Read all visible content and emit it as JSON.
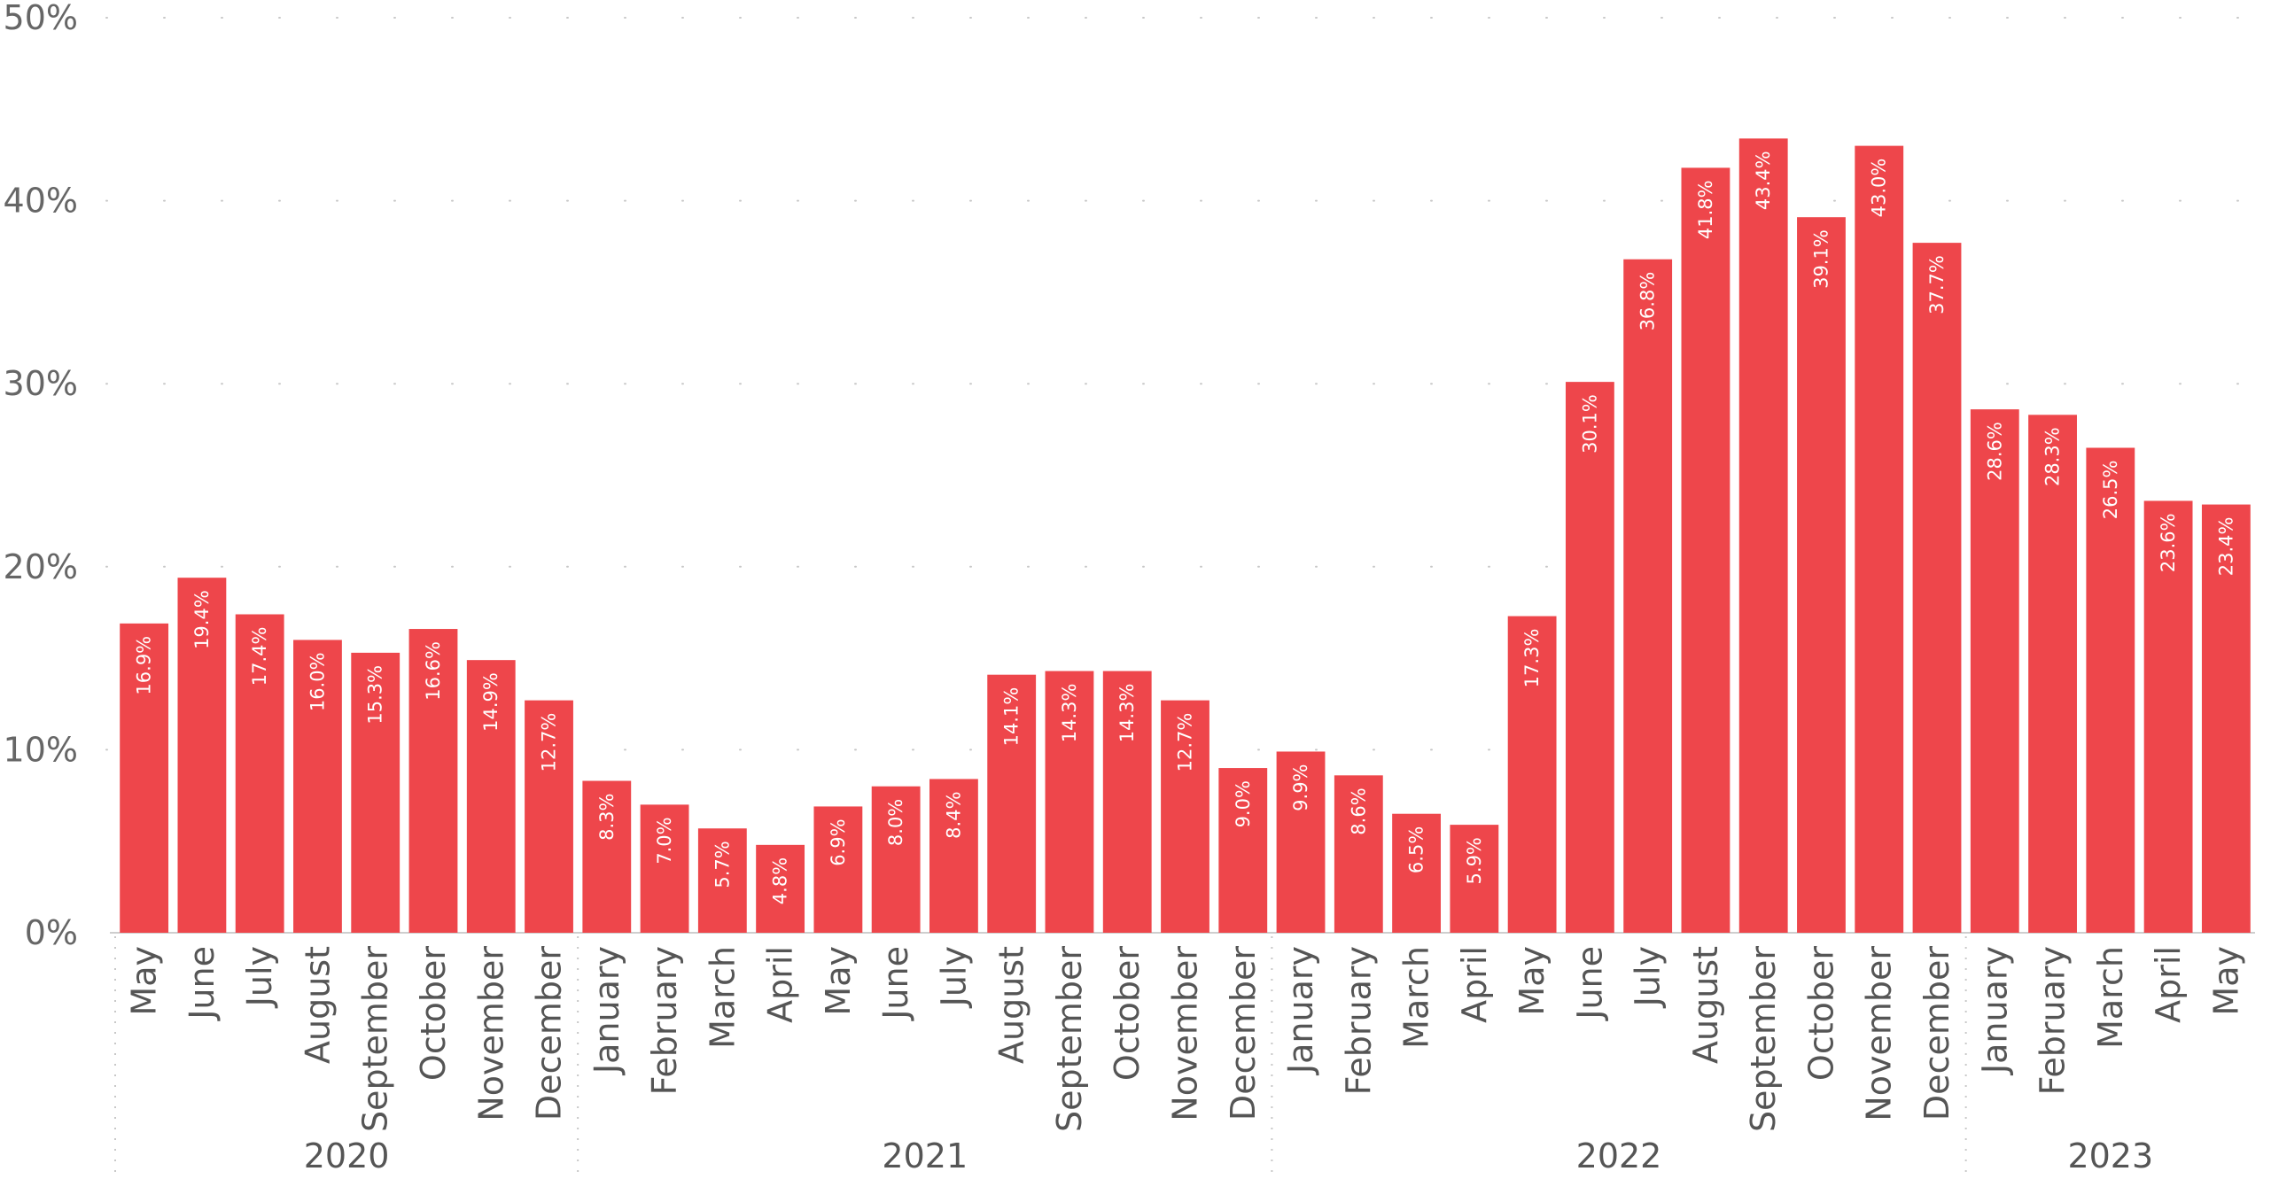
{
  "chart_data": {
    "type": "bar",
    "bar_color": "#EE464B",
    "label_color": "#FFFFFF",
    "grid": true,
    "ylim": [
      0,
      50
    ],
    "y_ticks": [
      "0%",
      "10%",
      "20%",
      "30%",
      "40%",
      "50%"
    ],
    "y_tick_values": [
      0,
      10,
      20,
      30,
      40,
      50
    ],
    "categories": [
      "May",
      "June",
      "July",
      "August",
      "September",
      "October",
      "November",
      "December",
      "January",
      "February",
      "March",
      "April",
      "May",
      "June",
      "July",
      "August",
      "September",
      "October",
      "November",
      "December",
      "January",
      "February",
      "March",
      "April",
      "May",
      "June",
      "July",
      "August",
      "September",
      "October",
      "November",
      "December",
      "January",
      "February",
      "March",
      "April",
      "May"
    ],
    "values": [
      16.9,
      19.4,
      17.4,
      16.0,
      15.3,
      16.6,
      14.9,
      12.7,
      8.3,
      7.0,
      5.7,
      4.8,
      6.9,
      8.0,
      8.4,
      14.1,
      14.3,
      14.3,
      12.7,
      9.0,
      9.9,
      8.6,
      6.5,
      5.9,
      17.3,
      30.1,
      36.8,
      41.8,
      43.4,
      39.1,
      43.0,
      37.7,
      28.6,
      28.3,
      26.5,
      23.6,
      23.4
    ],
    "data_labels": [
      "16.9%",
      "19.4%",
      "17.4%",
      "16.0%",
      "15.3%",
      "16.6%",
      "14.9%",
      "12.7%",
      "8.3%",
      "7.0%",
      "5.7%",
      "4.8%",
      "6.9%",
      "8.0%",
      "8.4%",
      "14.1%",
      "14.3%",
      "14.3%",
      "12.7%",
      "9.0%",
      "9.9%",
      "8.6%",
      "6.5%",
      "5.9%",
      "17.3%",
      "30.1%",
      "36.8%",
      "41.8%",
      "43.4%",
      "39.1%",
      "43.0%",
      "37.7%",
      "28.6%",
      "28.3%",
      "26.5%",
      "23.6%",
      "23.4%"
    ],
    "years": [
      {
        "label": "2020",
        "count": 8
      },
      {
        "label": "2021",
        "count": 12
      },
      {
        "label": "2022",
        "count": 12
      },
      {
        "label": "2023",
        "count": 5
      }
    ]
  }
}
